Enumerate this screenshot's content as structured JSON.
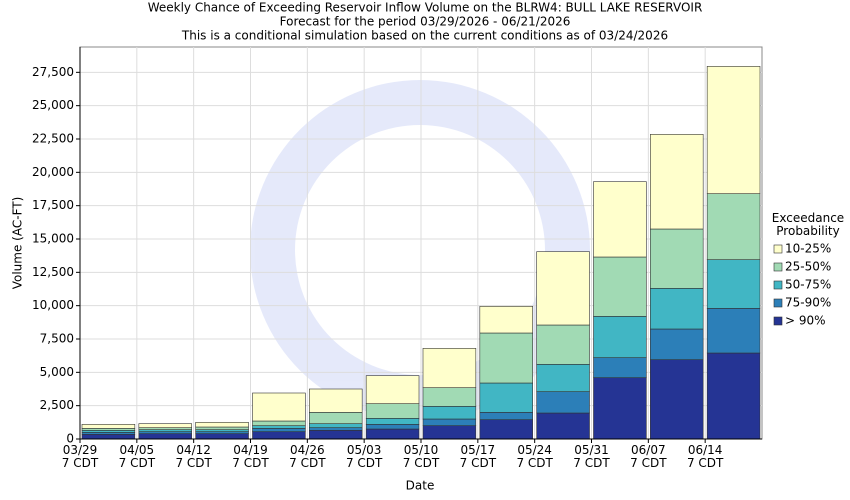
{
  "chart_data": {
    "type": "stacked_bar",
    "title": "Weekly Chance of Exceeding Reservoir Inflow Volume on the BLRW4: BULL LAKE RESERVOIR",
    "subtitle": "Forecast for the period 03/29/2026 - 06/21/2026",
    "note": "This is a conditional simulation based on the current conditions as of 03/24/2026",
    "x_label": "Date",
    "y_label": "Volume (AC-FT)",
    "legend_title": "Exceedance\nProbability",
    "legend_position": "right",
    "categories": [
      "03/29\n7 CDT",
      "04/05\n7 CDT",
      "04/12\n7 CDT",
      "04/19\n7 CDT",
      "04/26\n7 CDT",
      "05/03\n7 CDT",
      "05/10\n7 CDT",
      "05/17\n7 CDT",
      "05/24\n7 CDT",
      "05/31\n7 CDT",
      "06/07\n7 CDT",
      "06/14\n7 CDT"
    ],
    "series": [
      {
        "name": "10-25%",
        "color": "#ffffcc",
        "values": [
          300,
          300,
          350,
          2100,
          1750,
          2100,
          2950,
          2000,
          5500,
          5650,
          7100,
          9550
        ]
      },
      {
        "name": "25-50%",
        "color": "#a1dab4",
        "values": [
          150,
          150,
          200,
          350,
          850,
          1100,
          1400,
          3750,
          2950,
          4450,
          4450,
          4950
        ]
      },
      {
        "name": "50-75%",
        "color": "#41b6c4",
        "values": [
          150,
          150,
          150,
          200,
          300,
          450,
          950,
          2200,
          2050,
          3100,
          3050,
          3650
        ]
      },
      {
        "name": "75-90%",
        "color": "#2c7fb8",
        "values": [
          150,
          150,
          150,
          250,
          200,
          350,
          500,
          550,
          1600,
          1500,
          2300,
          3350
        ]
      },
      {
        "name": "> 90%",
        "color": "#253494",
        "values": [
          350,
          400,
          400,
          550,
          650,
          750,
          1000,
          1450,
          1950,
          4600,
          5950,
          6450
        ]
      }
    ],
    "ylim": [
      0,
      29400
    ],
    "yticks": [
      0,
      {
        "value": 2500,
        "label": "2,500"
      },
      {
        "value": 5000,
        "label": "5,000"
      },
      {
        "value": 7500,
        "label": "7,500"
      },
      {
        "value": 10000,
        "label": "10,000"
      },
      {
        "value": 12500,
        "label": "12,500"
      },
      {
        "value": 15000,
        "label": "15,000"
      },
      {
        "value": 17500,
        "label": "17,500"
      },
      {
        "value": 20000,
        "label": "20,000"
      },
      {
        "value": 22500,
        "label": "22,500"
      },
      {
        "value": 25000,
        "label": "25,000"
      },
      {
        "value": 27500,
        "label": "27,500"
      }
    ],
    "grid": true
  }
}
